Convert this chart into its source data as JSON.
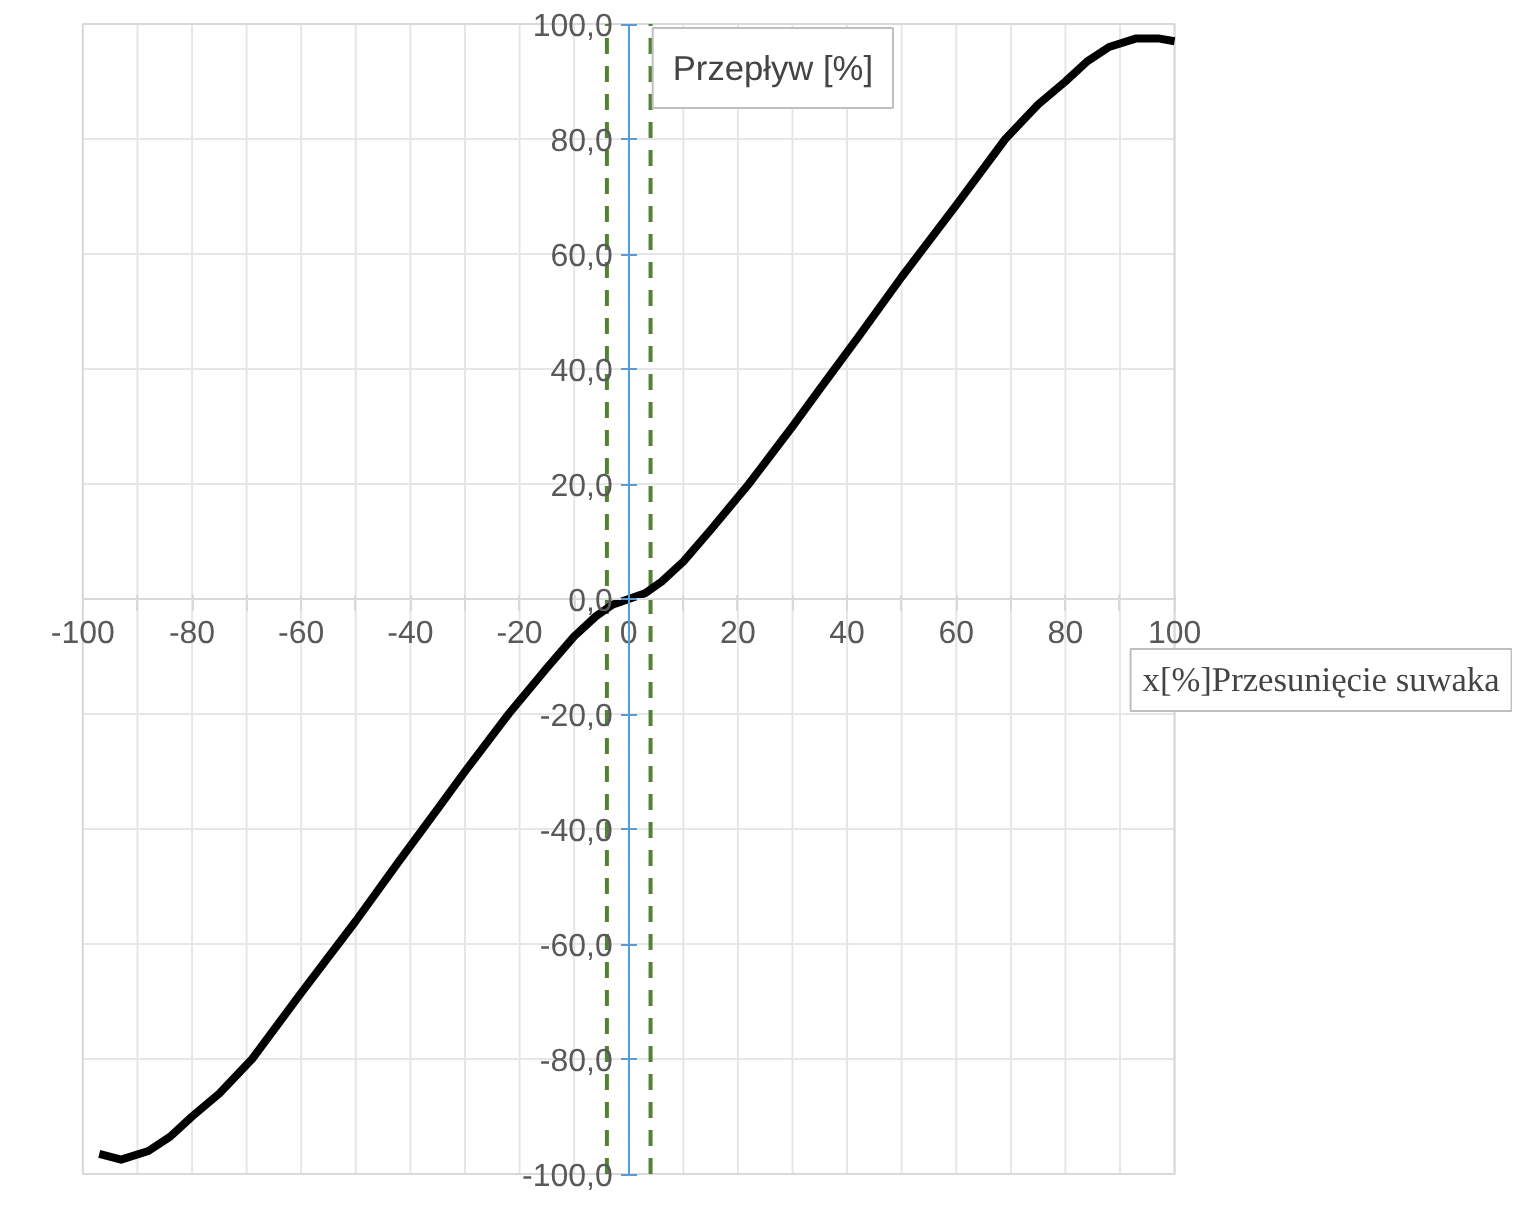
{
  "chart_data": {
    "type": "line",
    "xlabel": "x[%]Przesunięcie suwaka",
    "ylabel": "Przepływ [%]",
    "x": [
      -97,
      -93,
      -88,
      -84,
      -80,
      -75,
      -69,
      -60,
      -50,
      -42,
      -35,
      -30,
      -22,
      -15,
      -10,
      -6,
      -3,
      0,
      3,
      6,
      10,
      15,
      22,
      30,
      35,
      42,
      50,
      60,
      69,
      75,
      80,
      84,
      88,
      93,
      97,
      100
    ],
    "series": [
      {
        "color": "#000000",
        "values": [
          -96.5,
          -97.5,
          -96,
          -93.5,
          -90,
          -86,
          -80,
          -68.5,
          -56,
          -45.5,
          -36.5,
          -30,
          -20,
          -12,
          -6.5,
          -3,
          -1,
          0,
          1,
          3,
          6.5,
          12,
          20,
          30,
          36.5,
          45.5,
          56,
          68.5,
          80,
          86,
          90,
          93.5,
          96,
          97.5,
          97.5,
          97
        ]
      }
    ],
    "xlim": [
      -100,
      100
    ],
    "ylim": [
      -100,
      100
    ],
    "xticks": [
      -100,
      {
        "value": -90,
        "label": null
      },
      -80,
      {
        "value": -70,
        "label": null
      },
      -60,
      {
        "value": -50,
        "label": null
      },
      -40,
      {
        "value": -30,
        "label": null
      },
      -20,
      {
        "value": -10,
        "label": null
      },
      0,
      {
        "value": 10,
        "label": null
      },
      20,
      {
        "value": 30,
        "label": null
      },
      40,
      {
        "value": 50,
        "label": null
      },
      60,
      {
        "value": 70,
        "label": null
      },
      80,
      {
        "value": 90,
        "label": null
      },
      100
    ],
    "yticks": [
      {
        "value": -100,
        "label": "-100,0"
      },
      {
        "value": -80,
        "label": "-80,0"
      },
      {
        "value": -60,
        "label": "-60,0"
      },
      {
        "value": -40,
        "label": "-40,0"
      },
      {
        "value": -20,
        "label": "-20,0"
      },
      {
        "value": 0,
        "label": "0,0"
      },
      {
        "value": 20,
        "label": "20,0"
      },
      {
        "value": 40,
        "label": "40,0"
      },
      {
        "value": 60,
        "label": "60,0"
      },
      {
        "value": 80,
        "label": "80,0"
      },
      {
        "value": 100,
        "label": "100,0"
      }
    ],
    "ref_lines": [
      {
        "axis": "x",
        "value": -4,
        "color": "#548235",
        "line_style": "dashed"
      },
      {
        "axis": "x",
        "value": 4,
        "color": "#548235",
        "line_style": "dashed"
      }
    ],
    "grid": true,
    "marker": "none",
    "line_style": "solid"
  }
}
